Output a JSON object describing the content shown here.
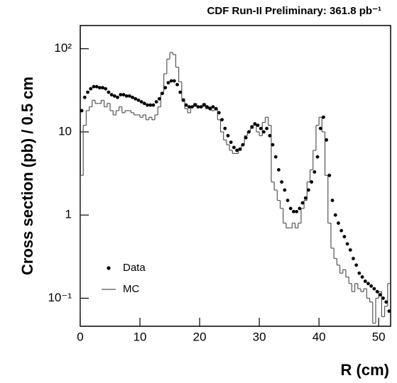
{
  "chart_data": {
    "type": "histogram",
    "title": "CDF Run-II Preliminary:  361.8 pb⁻¹",
    "x_label": "R (cm)",
    "y_label": "Cross section (pb) / 0.5 cm",
    "log_y": true,
    "legend": "lower left",
    "xlim": [
      0,
      52
    ],
    "ylim": [
      0.046,
      190
    ],
    "xticks": [
      0,
      10,
      20,
      30,
      40,
      50
    ],
    "yticks": [
      {
        "value": 0.1,
        "label": "10⁻¹"
      },
      1,
      10,
      {
        "value": 100,
        "label": "10²"
      }
    ],
    "bins": [
      0,
      0.5,
      1,
      1.5,
      2,
      2.5,
      3,
      3.5,
      4,
      4.5,
      5,
      5.5,
      6,
      6.5,
      7,
      7.5,
      8,
      8.5,
      9,
      9.5,
      10,
      10.5,
      11,
      11.5,
      12,
      12.5,
      13,
      13.5,
      14,
      14.5,
      15,
      15.5,
      16,
      16.5,
      17,
      17.5,
      18,
      18.5,
      19,
      19.5,
      20,
      20.5,
      21,
      21.5,
      22,
      22.5,
      23,
      23.5,
      24,
      24.5,
      25,
      25.5,
      26,
      26.5,
      27,
      27.5,
      28,
      28.5,
      29,
      29.5,
      30,
      30.5,
      31,
      31.5,
      32,
      32.5,
      33,
      33.5,
      34,
      34.5,
      35,
      35.5,
      36,
      36.5,
      37,
      37.5,
      38,
      38.5,
      39,
      39.5,
      40,
      40.5,
      41,
      41.5,
      42,
      42.5,
      43,
      43.5,
      44,
      44.5,
      45,
      45.5,
      46,
      46.5,
      47,
      47.5,
      48,
      48.5,
      49,
      49.5,
      50,
      50.5,
      51,
      51.5,
      52
    ],
    "series": [
      {
        "name": "Data",
        "style": "markers",
        "color": "#000000",
        "values": [
          18,
          26,
          30,
          33,
          35,
          35,
          34,
          34,
          33,
          30,
          28,
          27,
          26,
          28,
          28,
          27,
          27,
          26,
          25,
          24,
          23,
          22,
          21,
          21,
          21,
          23,
          25,
          29,
          34,
          39,
          41,
          41,
          37,
          30,
          24,
          21,
          20,
          20,
          21,
          20,
          20,
          21,
          20,
          19,
          20,
          19,
          17,
          14,
          11,
          9,
          7.5,
          6.5,
          6,
          6.2,
          7,
          8.5,
          10,
          11.5,
          12.5,
          12,
          11,
          10,
          11,
          9,
          7,
          5,
          3.5,
          2.5,
          2,
          1.5,
          1.2,
          1.1,
          1.1,
          1.2,
          1.4,
          1.6,
          2,
          2.5,
          3.3,
          5,
          11,
          15,
          8,
          3,
          1.5,
          1.0,
          0.8,
          0.65,
          0.55,
          0.45,
          0.38,
          0.3,
          0.25,
          0.2,
          0.18,
          0.16,
          0.15,
          0.14,
          0.13,
          0.12,
          0.11,
          0.1,
          0.09,
          0.07
        ]
      },
      {
        "name": "MC",
        "style": "step",
        "color": "#555555",
        "values": [
          3,
          12,
          18,
          20,
          24,
          22,
          22,
          24,
          20,
          22,
          18,
          16,
          18,
          20,
          17,
          18,
          18,
          17,
          16,
          16,
          15,
          16,
          14,
          15,
          14,
          16,
          20,
          30,
          50,
          75,
          90,
          85,
          60,
          40,
          25,
          19,
          17,
          20,
          22,
          20,
          20,
          22,
          19,
          20,
          18,
          19,
          14,
          10,
          8,
          7,
          6,
          5.5,
          5.5,
          6,
          7,
          9,
          10,
          11,
          12,
          10,
          9,
          13,
          15,
          12,
          2.5,
          2,
          1.5,
          1.2,
          0.8,
          0.7,
          0.7,
          0.8,
          0.7,
          0.8,
          1.2,
          1.5,
          2.5,
          3.5,
          6,
          12,
          15,
          10,
          3,
          0.8,
          0.4,
          0.3,
          0.25,
          0.2,
          0.22,
          0.18,
          0.15,
          0.12,
          0.15,
          0.13,
          0.12,
          0.13,
          0.1,
          0.09,
          0.05,
          0.1,
          0.12,
          0.06,
          0.08,
          0.15
        ]
      }
    ]
  }
}
